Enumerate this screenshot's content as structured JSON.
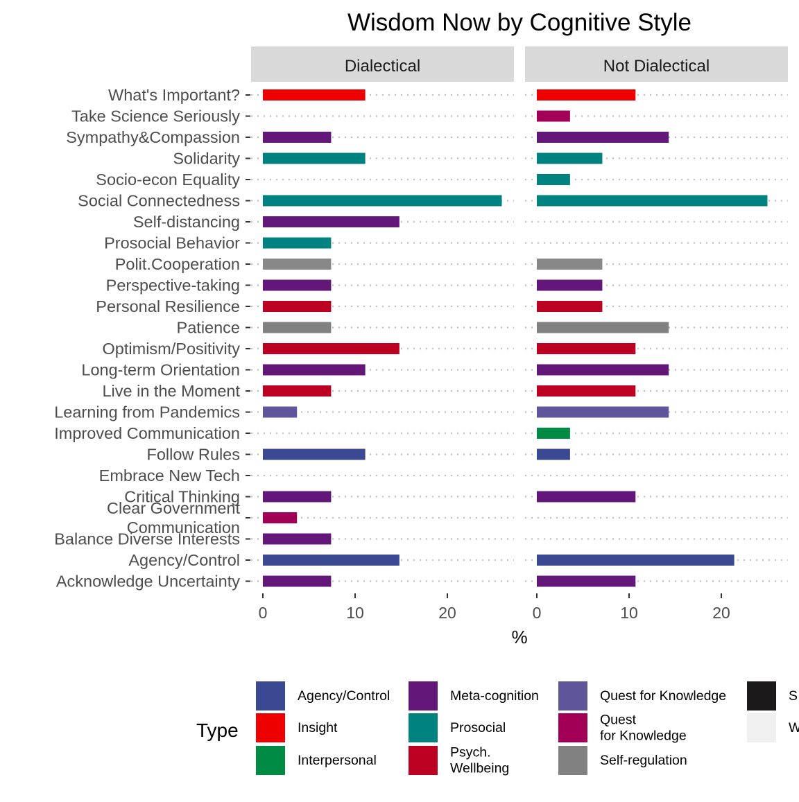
{
  "chart_data": {
    "type": "bar",
    "orientation": "horizontal",
    "title": "Wisdom Now by Cognitive Style",
    "xlabel": "%",
    "ylabel": "",
    "xlim": [
      0,
      26.5
    ],
    "x_ticks": [
      0,
      10,
      20
    ],
    "grid": "dotted horizontal",
    "legend_placement": "bottom",
    "categories": [
      "What's Important?",
      "Take Science Seriously",
      "Sympathy&Compassion",
      "Solidarity",
      "Socio-econ Equality",
      "Social Connectedness",
      "Self-distancing",
      "Prosocial Behavior",
      "Polit.Cooperation",
      "Perspective-taking",
      "Personal Resilience",
      "Patience",
      "Optimism/Positivity",
      "Long-term Orientation",
      "Live in the Moment",
      "Learning from Pandemics",
      "Improved Communication",
      "Follow Rules",
      "Embrace New Tech",
      "Critical Thinking",
      "Clear Government\nCommunication",
      "Balance Diverse Interests",
      "Agency/Control",
      "Acknowledge Uncertainty"
    ],
    "category_types": [
      "Insight",
      "Quest\nfor Knowledge",
      "Meta-cognition",
      "Prosocial",
      "Prosocial",
      "Prosocial",
      "Meta-cognition",
      "Prosocial",
      "Societal",
      "Meta-cognition",
      "Psych.\nWellbeing",
      "Self-regulation",
      "Psych.\nWellbeing",
      "Meta-cognition",
      "Psych.\nWellbeing",
      "Quest for Knowledge",
      "Interpersonal",
      "Agency/Control",
      "Quest for Knowledge",
      "Meta-cognition",
      "Quest\nfor Knowledge",
      "Meta-cognition",
      "Agency/Control",
      "Meta-cognition"
    ],
    "panels": [
      {
        "name": "Dialectical",
        "values": [
          11.1,
          0,
          7.4,
          11.1,
          0,
          25.9,
          14.8,
          7.4,
          7.4,
          7.4,
          7.4,
          7.4,
          14.8,
          11.1,
          7.4,
          3.7,
          0,
          11.1,
          0,
          7.4,
          3.7,
          7.4,
          14.8,
          7.4
        ]
      },
      {
        "name": "Not Dialectical",
        "values": [
          10.7,
          3.6,
          14.3,
          7.1,
          3.6,
          25.0,
          0,
          0,
          7.1,
          7.1,
          7.1,
          14.3,
          10.7,
          14.3,
          10.7,
          14.3,
          3.6,
          3.6,
          0,
          10.7,
          0,
          0,
          21.4,
          10.7
        ]
      }
    ],
    "legend": {
      "title": "Type",
      "items": [
        {
          "label": "Agency/Control",
          "color": "#3B4992"
        },
        {
          "label": "Insight",
          "color": "#EE0000"
        },
        {
          "label": "Interpersonal",
          "color": "#008B45"
        },
        {
          "label": "Meta-cognition",
          "color": "#631879"
        },
        {
          "label": "Prosocial",
          "color": "#008280"
        },
        {
          "label": "Psych.\nWellbeing",
          "color": "#BB0021"
        },
        {
          "label": "Quest for Knowledge",
          "color": "#5F559B"
        },
        {
          "label": "Quest\nfor Knowledge",
          "color": "#A20056"
        },
        {
          "label": "Self-regulation",
          "color": "#808180"
        },
        {
          "label": "S",
          "color": "#1B1919"
        },
        {
          "label": "W",
          "color": "#F0F0F0"
        }
      ]
    }
  }
}
